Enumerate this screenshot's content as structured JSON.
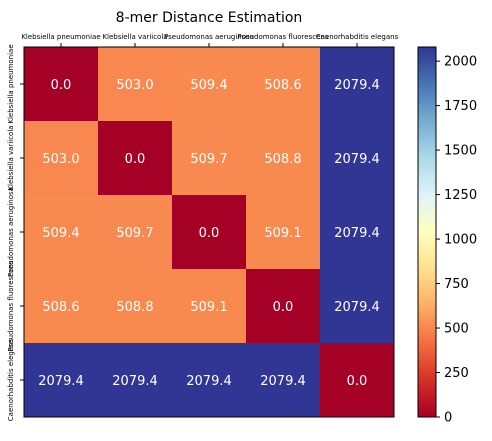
{
  "chart_data": {
    "type": "heatmap",
    "title": "8-mer Distance Estimation",
    "x_labels": [
      "Klebsiella pneumoniae",
      "Klebsiella variicola",
      "Pseudomonas aeruginosa",
      "Pseudomonas fluorescens",
      "Caenorhabditis elegans"
    ],
    "y_labels": [
      "Klebsiella pneumoniae",
      "Klebsiella variicola",
      "Pseudomonas aeruginosa",
      "Pseudomonas fluorescens",
      "Caenorhabditis elegans"
    ],
    "values": [
      [
        0.0,
        503.0,
        509.4,
        508.6,
        2079.4
      ],
      [
        503.0,
        0.0,
        509.7,
        508.8,
        2079.4
      ],
      [
        509.4,
        509.7,
        0.0,
        509.1,
        2079.4
      ],
      [
        508.6,
        508.8,
        509.1,
        0.0,
        2079.4
      ],
      [
        2079.4,
        2079.4,
        2079.4,
        2079.4,
        0.0
      ]
    ],
    "value_labels": [
      [
        "0.0",
        "503.0",
        "509.4",
        "508.6",
        "2079.4"
      ],
      [
        "503.0",
        "0.0",
        "509.7",
        "508.8",
        "2079.4"
      ],
      [
        "509.4",
        "509.7",
        "0.0",
        "509.1",
        "2079.4"
      ],
      [
        "508.6",
        "508.8",
        "509.1",
        "0.0",
        "2079.4"
      ],
      [
        "2079.4",
        "2079.4",
        "2079.4",
        "2079.4",
        "0.0"
      ]
    ],
    "colormap": "RdYlBu",
    "colorbar": {
      "range": [
        0,
        2079.4
      ],
      "ticks": [
        0,
        250,
        500,
        750,
        1000,
        1250,
        1500,
        1750,
        2000
      ],
      "tick_labels": [
        "0",
        "250",
        "500",
        "750",
        "1000",
        "1250",
        "1500",
        "1750",
        "2000"
      ]
    },
    "colors": {
      "low": "#a50026",
      "mid": "#f98e52",
      "high": "#313695"
    }
  }
}
